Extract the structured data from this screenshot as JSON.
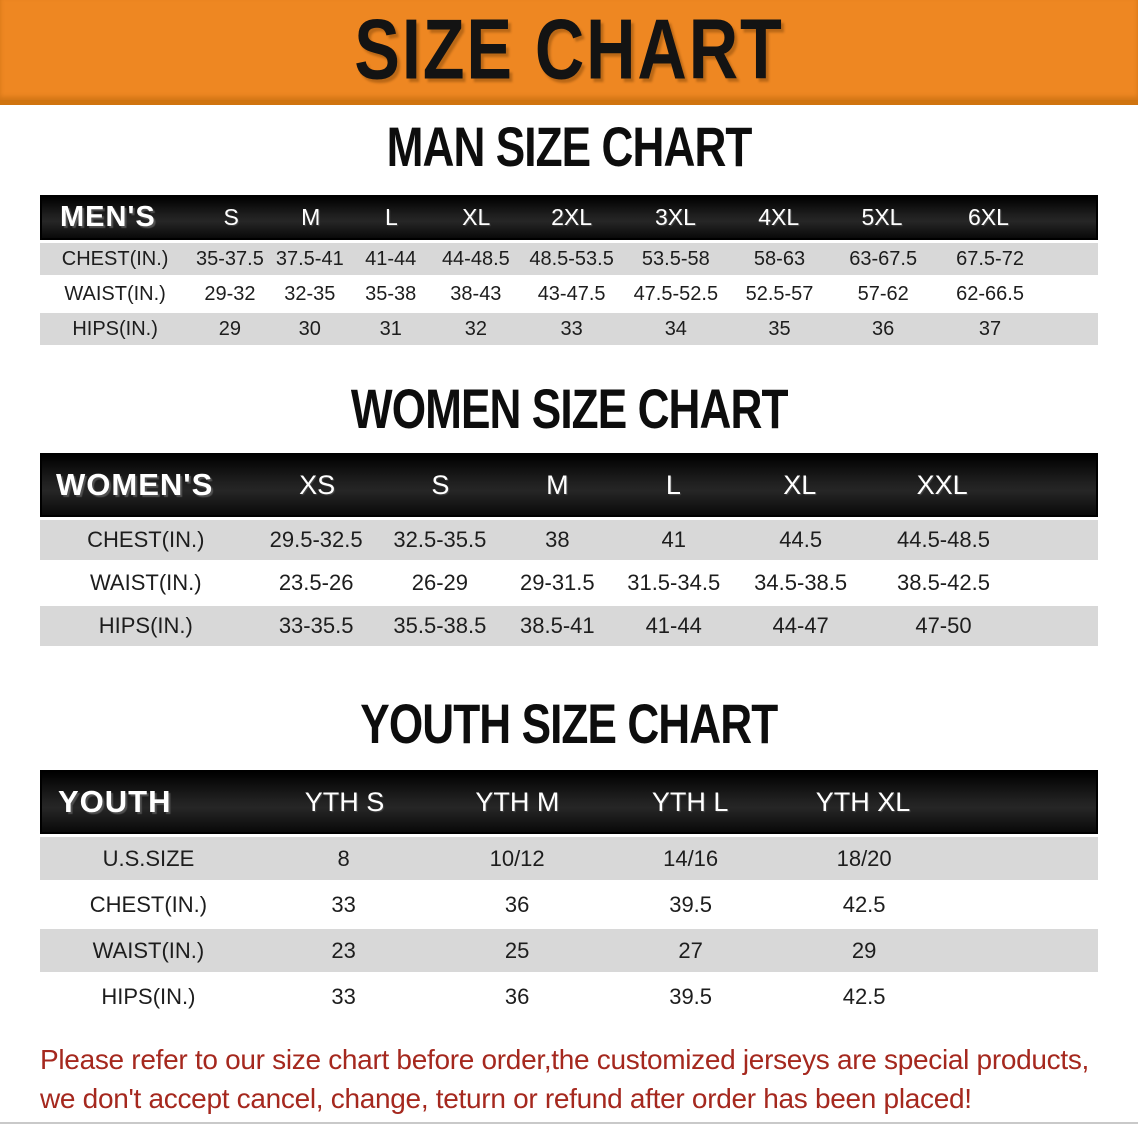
{
  "banner": {
    "title": "SIZE CHART"
  },
  "colors": {
    "banner_orange": "#ee8722",
    "header_black": "#141414",
    "row_gray": "#d8d8d8",
    "disclaimer_red": "#a5281e"
  },
  "men": {
    "heading": "MAN SIZE CHART",
    "table": {
      "label": "MEN'S",
      "columns": [
        "S",
        "M",
        "L",
        "XL",
        "2XL",
        "3XL",
        "4XL",
        "5XL",
        "6XL"
      ],
      "rows": [
        {
          "label": "CHEST(IN.)",
          "values": [
            "35-37.5",
            "37.5-41",
            "41-44",
            "44-48.5",
            "48.5-53.5",
            "53.5-58",
            "58-63",
            "63-67.5",
            "67.5-72"
          ]
        },
        {
          "label": "WAIST(IN.)",
          "values": [
            "29-32",
            "32-35",
            "35-38",
            "38-43",
            "43-47.5",
            "47.5-52.5",
            "52.5-57",
            "57-62",
            "62-66.5"
          ]
        },
        {
          "label": "HIPS(IN.)",
          "values": [
            "29",
            "30",
            "31",
            "32",
            "33",
            "34",
            "35",
            "36",
            "37"
          ]
        }
      ]
    }
  },
  "women": {
    "heading": "WOMEN SIZE CHART",
    "table": {
      "label": "WOMEN'S",
      "columns": [
        "XS",
        "S",
        "M",
        "L",
        "XL",
        "XXL"
      ],
      "rows": [
        {
          "label": "CHEST(IN.)",
          "values": [
            "29.5-32.5",
            "32.5-35.5",
            "38",
            "41",
            "44.5",
            "44.5-48.5"
          ]
        },
        {
          "label": "WAIST(IN.)",
          "values": [
            "23.5-26",
            "26-29",
            "29-31.5",
            "31.5-34.5",
            "34.5-38.5",
            "38.5-42.5"
          ]
        },
        {
          "label": "HIPS(IN.)",
          "values": [
            "33-35.5",
            "35.5-38.5",
            "38.5-41",
            "41-44",
            "44-47",
            "47-50"
          ]
        }
      ]
    }
  },
  "youth": {
    "heading": "YOUTH SIZE CHART",
    "table": {
      "label": "YOUTH",
      "columns": [
        "YTH S",
        "YTH M",
        "YTH L",
        "YTH XL"
      ],
      "rows": [
        {
          "label": "U.S.SIZE",
          "values": [
            "8",
            "10/12",
            "14/16",
            "18/20"
          ]
        },
        {
          "label": "CHEST(IN.)",
          "values": [
            "33",
            "36",
            "39.5",
            "42.5"
          ]
        },
        {
          "label": "WAIST(IN.)",
          "values": [
            "23",
            "25",
            "27",
            "29"
          ]
        },
        {
          "label": "HIPS(IN.)",
          "values": [
            "33",
            "36",
            "39.5",
            "42.5"
          ]
        }
      ]
    }
  },
  "disclaimer": {
    "line1": "Please refer to our size chart before order,the customized jerseys are special products,",
    "line2": "we don't accept cancel, change, teturn or refund after order has been placed!"
  }
}
